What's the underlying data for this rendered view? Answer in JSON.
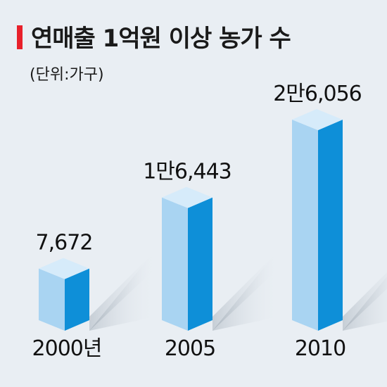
{
  "title": "연매출 1억원 이상 농가 수",
  "unit": "(단위:가구)",
  "colors": {
    "accent": "#e8202a",
    "bar_front": "#a9d4f2",
    "bar_side": "#0e8fd8",
    "bar_top": "#d6ebfa",
    "background": "#e9eef3"
  },
  "chart_data": {
    "type": "bar",
    "categories": [
      "2000년",
      "2005",
      "2010"
    ],
    "values": [
      7672,
      16443,
      26056
    ],
    "value_labels": [
      "7,672",
      "1만6,443",
      "2만6,056"
    ],
    "style": "3d",
    "grid": false
  }
}
